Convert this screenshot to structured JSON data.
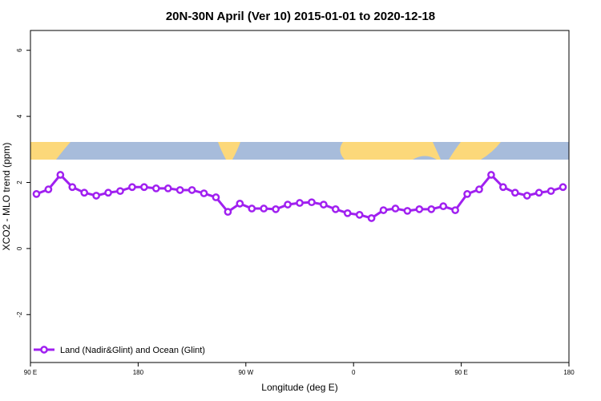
{
  "chart_data": {
    "type": "line",
    "title": "20N-30N April (Ver 10)   2015-01-01 to 2020-12-18",
    "xlabel": "Longitude (deg E)",
    "ylabel": "XCO2 - MLO trend (ppm)",
    "x": [
      95,
      105,
      115,
      125,
      135,
      145,
      155,
      165,
      175,
      185,
      195,
      205,
      215,
      225,
      235,
      245,
      255,
      265,
      275,
      285,
      295,
      305,
      315,
      325,
      335,
      345,
      355,
      365,
      375,
      385,
      395,
      405,
      415,
      425,
      435,
      445,
      455,
      465,
      475,
      485,
      495,
      505,
      515,
      525,
      535
    ],
    "series": [
      {
        "name": "Land (Nadir&Glint) and Ocean (Glint)",
        "color": "#a020f0",
        "values": [
          1.65,
          1.79,
          2.23,
          1.86,
          1.69,
          1.6,
          1.69,
          1.74,
          1.86,
          1.86,
          1.82,
          1.82,
          1.77,
          1.77,
          1.67,
          1.55,
          1.11,
          1.36,
          1.21,
          1.21,
          1.19,
          1.33,
          1.38,
          1.4,
          1.33,
          1.19,
          1.07,
          1.02,
          0.92,
          1.16,
          1.21,
          1.14,
          1.19,
          1.19,
          1.28,
          1.16,
          1.65,
          1.79,
          2.23,
          1.86,
          1.69,
          1.6,
          1.69,
          1.74,
          1.86
        ]
      }
    ],
    "xlim": [
      90,
      540
    ],
    "xticks": [
      {
        "value": 90,
        "label": "90 E"
      },
      180,
      {
        "value": 270,
        "label": "90 W"
      },
      {
        "value": 360,
        "label": "0"
      },
      {
        "value": 450,
        "label": "90 E"
      },
      {
        "value": 540,
        "label": "180"
      }
    ],
    "ylim": [
      -3.45,
      6.6
    ],
    "yticks": [
      -2,
      0,
      2,
      4,
      6
    ],
    "legend": "bottom-left"
  }
}
